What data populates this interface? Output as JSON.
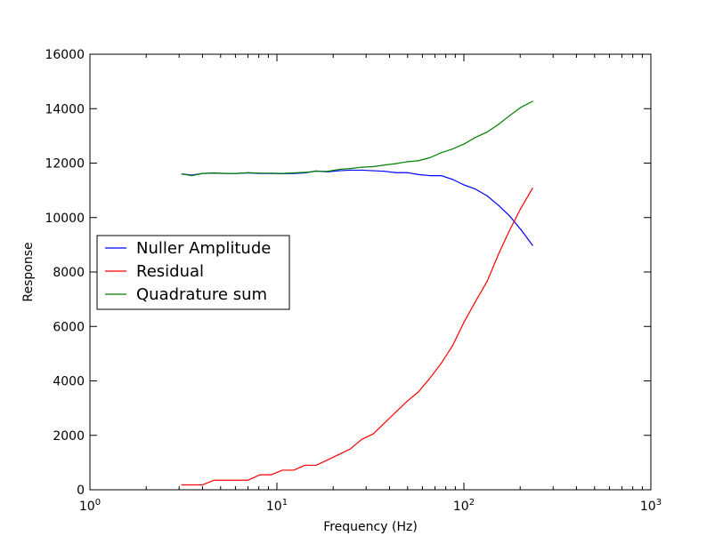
{
  "chart_data": {
    "type": "line",
    "title": "",
    "xlabel": "Frequency (Hz)",
    "ylabel": "Response",
    "xscale": "log",
    "xlim": [
      1,
      1000
    ],
    "ylim": [
      0,
      16000
    ],
    "x_ticks": [
      1,
      10,
      100,
      1000
    ],
    "x_tick_labels": [
      {
        "base": "10",
        "exp": "0"
      },
      {
        "base": "10",
        "exp": "1"
      },
      {
        "base": "10",
        "exp": "2"
      },
      {
        "base": "10",
        "exp": "3"
      }
    ],
    "y_ticks": [
      0,
      2000,
      4000,
      6000,
      8000,
      10000,
      12000,
      14000,
      16000
    ],
    "y_tick_labels": [
      "0",
      "2000",
      "4000",
      "6000",
      "8000",
      "10000",
      "12000",
      "14000",
      "16000"
    ],
    "grid": false,
    "legend_position": "center-left",
    "x": [
      3.1,
      3.5,
      4.0,
      4.6,
      5.3,
      6.1,
      7.0,
      8.1,
      9.3,
      10.7,
      12.3,
      14.1,
      16.2,
      18.7,
      21.5,
      24.7,
      28.4,
      32.7,
      37.6,
      43.2,
      49.7,
      57.2,
      65.8,
      75.7,
      87.1,
      100.0,
      115.0,
      133.0,
      153.0,
      176.0,
      202.0,
      233.0
    ],
    "series": [
      {
        "name": "Nuller Amplitude",
        "color": "#0000ff",
        "values": [
          11600,
          11560,
          11620,
          11630,
          11620,
          11620,
          11640,
          11620,
          11620,
          11610,
          11620,
          11640,
          11710,
          11680,
          11720,
          11740,
          11740,
          11720,
          11700,
          11650,
          11650,
          11580,
          11540,
          11540,
          11400,
          11200,
          11050,
          10800,
          10450,
          10050,
          9550,
          8980
        ]
      },
      {
        "name": "Residual",
        "color": "#ff0000",
        "values": [
          180,
          180,
          180,
          350,
          350,
          350,
          350,
          550,
          550,
          720,
          720,
          900,
          900,
          1100,
          1300,
          1500,
          1850,
          2050,
          2450,
          2850,
          3250,
          3600,
          4100,
          4650,
          5300,
          6150,
          6900,
          7650,
          8650,
          9550,
          10350,
          11080
        ]
      },
      {
        "name": "Quadrature sum",
        "color": "#008000",
        "values": [
          11600,
          11540,
          11620,
          11640,
          11620,
          11620,
          11650,
          11630,
          11630,
          11620,
          11640,
          11660,
          11700,
          11700,
          11770,
          11800,
          11850,
          11870,
          11930,
          11980,
          12050,
          12090,
          12200,
          12380,
          12520,
          12700,
          12940,
          13140,
          13420,
          13750,
          14050,
          14270
        ]
      }
    ]
  }
}
